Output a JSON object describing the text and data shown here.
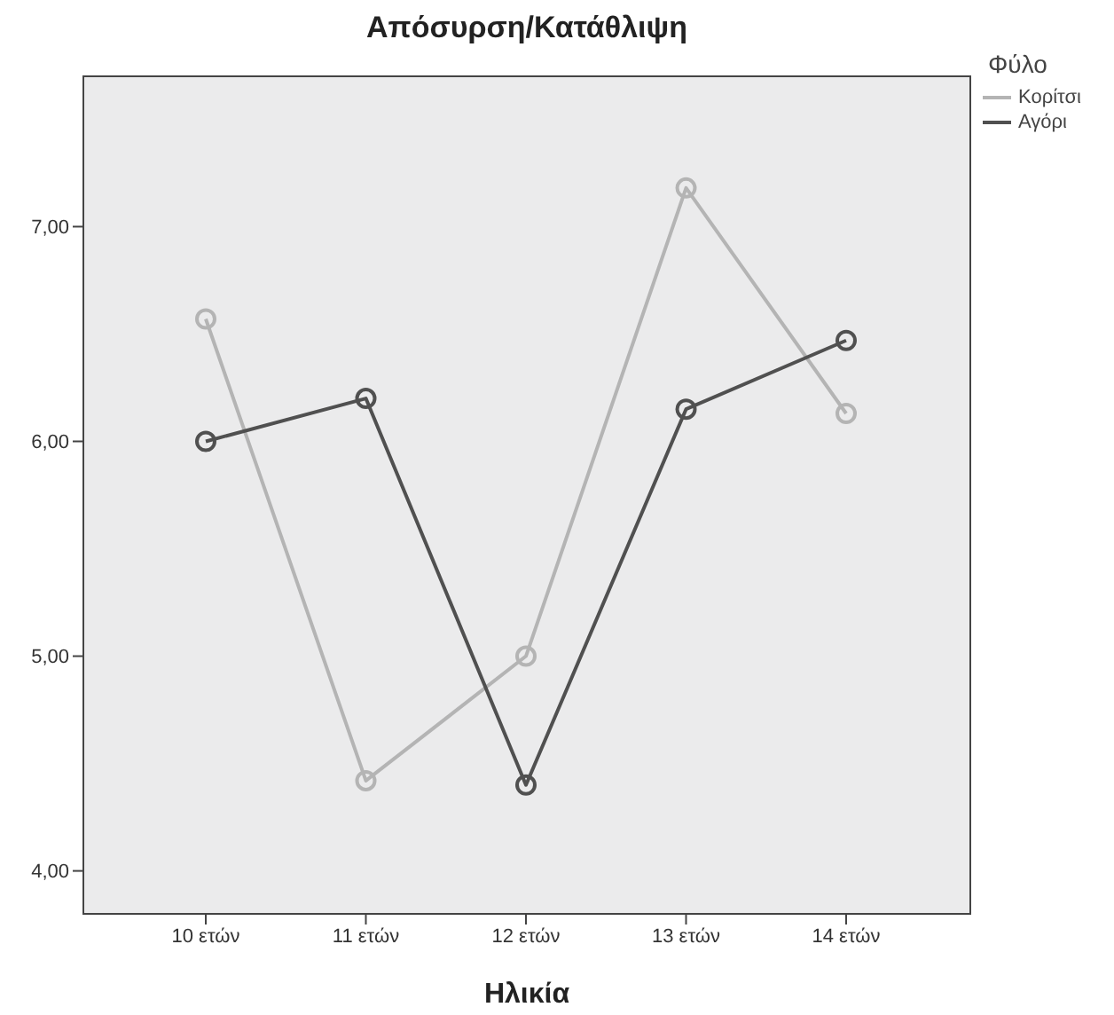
{
  "chart_data": {
    "type": "line",
    "title": "Απόσυρση/Κατάθλιψη",
    "xlabel": "Ηλικία",
    "legend_title": "Φύλο",
    "categories": [
      "10 ετών",
      "11 ετών",
      "12 ετών",
      "13 ετών",
      "14 ετών"
    ],
    "series": [
      {
        "name": "Κορίτσι",
        "color": "#b4b4b4",
        "values": [
          6.57,
          4.42,
          5.0,
          7.18,
          6.13
        ]
      },
      {
        "name": "Αγόρι",
        "color": "#505050",
        "values": [
          6.0,
          6.2,
          4.4,
          6.15,
          6.47
        ]
      }
    ],
    "ylim": [
      3.8,
      7.7
    ],
    "yticks": [
      {
        "value": 4,
        "label": "4,00"
      },
      {
        "value": 5,
        "label": "5,00"
      },
      {
        "value": 6,
        "label": "6,00"
      },
      {
        "value": 7,
        "label": "7,00"
      }
    ],
    "legend": "top right",
    "marker": "circle",
    "line_style": "solid"
  }
}
